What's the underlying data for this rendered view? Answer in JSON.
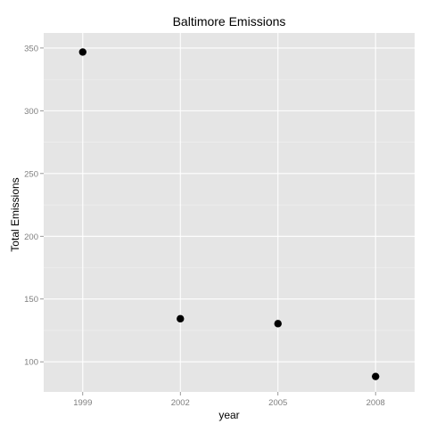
{
  "chart_data": {
    "type": "scatter",
    "title": "Baltimore Emissions",
    "xlabel": "year",
    "ylabel": "Total Emissions",
    "x": [
      1999,
      2002,
      2005,
      2008
    ],
    "y": [
      346.8,
      134.3,
      130.4,
      88.3
    ],
    "xticks": [
      "1999",
      "2002",
      "2005",
      "2008"
    ],
    "yticks": [
      100,
      150,
      200,
      250,
      300,
      350
    ],
    "xlim": [
      1997.8,
      2009.2
    ],
    "ylim": [
      76,
      362
    ],
    "grid": true,
    "legend": "none",
    "colors": {
      "panel": "#e5e5e5",
      "grid_major": "#ffffff",
      "grid_minor": "#f2f2f2",
      "point": "#000000",
      "tick": "#7f7f7f"
    }
  }
}
